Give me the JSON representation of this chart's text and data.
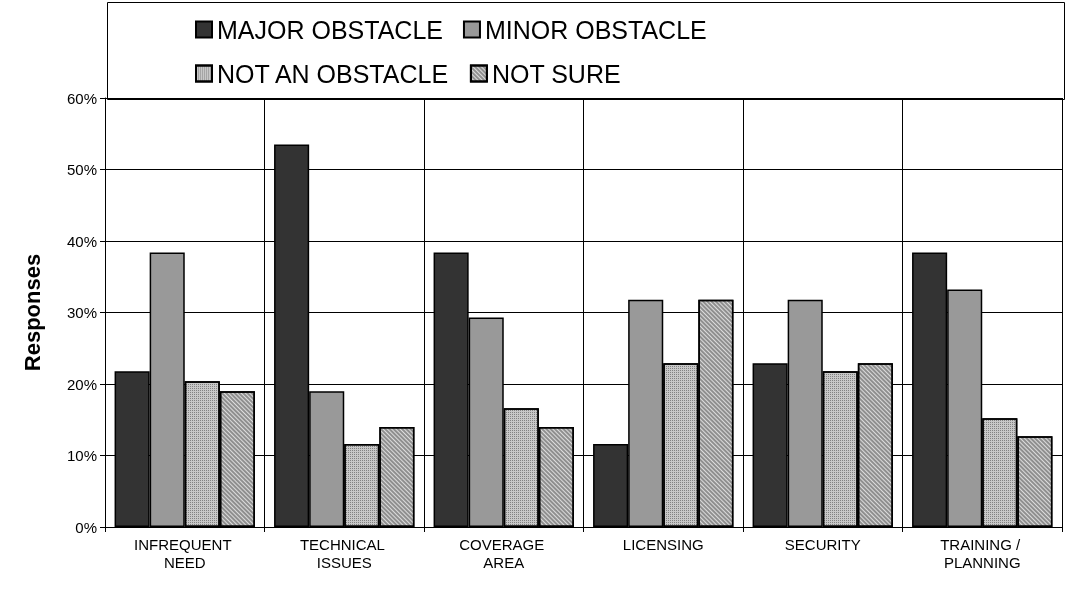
{
  "chart_data": {
    "type": "bar",
    "ylabel": "Responses",
    "categories": [
      "INFREQUENT NEED",
      "TECHNICAL ISSUES",
      "COVERAGE AREA",
      "LICENSING",
      "SECURITY",
      "TRAINING / PLANNING"
    ],
    "series": [
      {
        "name": "MAJOR OBSTACLE",
        "color": "#333333",
        "values": [
          21.8,
          53.5,
          38.4,
          11.6,
          22.9,
          38.4
        ]
      },
      {
        "name": "MINOR OBSTACLE",
        "color": "#999999",
        "values": [
          38.4,
          19.0,
          29.3,
          31.8,
          31.8,
          33.2
        ]
      },
      {
        "name": "NOT AN OBSTACLE",
        "color": "#c8c8c8",
        "values": [
          20.4,
          11.6,
          16.6,
          22.9,
          21.8,
          15.2
        ]
      },
      {
        "name": "NOT SURE",
        "color": "#dcdcdc",
        "values": [
          19.0,
          14.0,
          14.0,
          31.8,
          22.9,
          12.7
        ]
      }
    ],
    "ylim": [
      0,
      60
    ],
    "yticks": [
      {
        "value": 0,
        "label": "0%"
      },
      {
        "value": 10,
        "label": "10%"
      },
      {
        "value": 20,
        "label": "20%"
      },
      {
        "value": 30,
        "label": "30%"
      },
      {
        "value": 40,
        "label": "40%"
      },
      {
        "value": 50,
        "label": "50%"
      },
      {
        "value": 60,
        "label": "60%"
      }
    ],
    "grid": true,
    "legend": "top"
  }
}
